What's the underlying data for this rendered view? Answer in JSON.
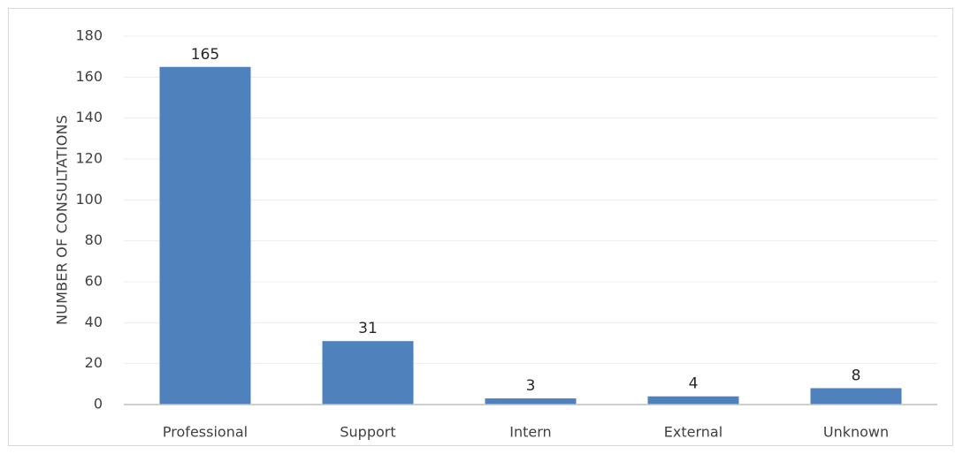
{
  "chart_data": {
    "type": "bar",
    "title": "",
    "xlabel": "",
    "ylabel": "NUMBER OF CONSULTATIONS",
    "categories": [
      "Professional",
      "Support",
      "Intern",
      "External",
      "Unknown"
    ],
    "values": [
      165,
      31,
      3,
      4,
      8
    ],
    "ylim": [
      0,
      180
    ],
    "yticks": [
      0,
      20,
      40,
      60,
      80,
      100,
      120,
      140,
      160,
      180
    ],
    "grid": true,
    "legend": "none",
    "data_labels": true,
    "colors": {
      "bar": "#4f81bd",
      "grid": "#ececec",
      "axis": "#bfbfbf",
      "text": "#404040"
    }
  }
}
